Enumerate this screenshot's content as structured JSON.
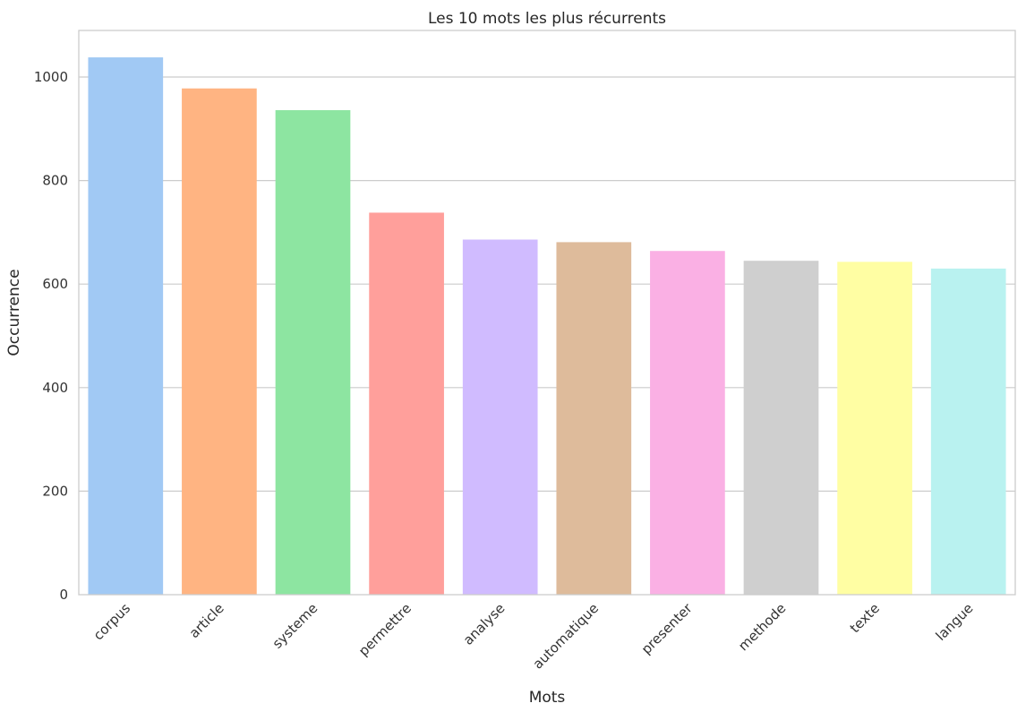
{
  "chart_data": {
    "type": "bar",
    "title": "Les 10 mots les plus récurrents",
    "xlabel": "Mots",
    "ylabel": "Occurrence",
    "categories": [
      "corpus",
      "article",
      "systeme",
      "permettre",
      "analyse",
      "automatique",
      "presenter",
      "methode",
      "texte",
      "langue"
    ],
    "values": [
      1038,
      978,
      936,
      738,
      686,
      681,
      664,
      645,
      643,
      630
    ],
    "colors": [
      "#a1c9f4",
      "#ffb482",
      "#8de5a1",
      "#ff9f9b",
      "#d0bbff",
      "#debb9b",
      "#fab0e4",
      "#cfcfcf",
      "#fffea3",
      "#b9f2f0"
    ],
    "ylim": [
      0,
      1090
    ],
    "yticks": [
      0,
      200,
      400,
      600,
      800,
      1000
    ],
    "grid": "horizontal",
    "legend": "none"
  }
}
